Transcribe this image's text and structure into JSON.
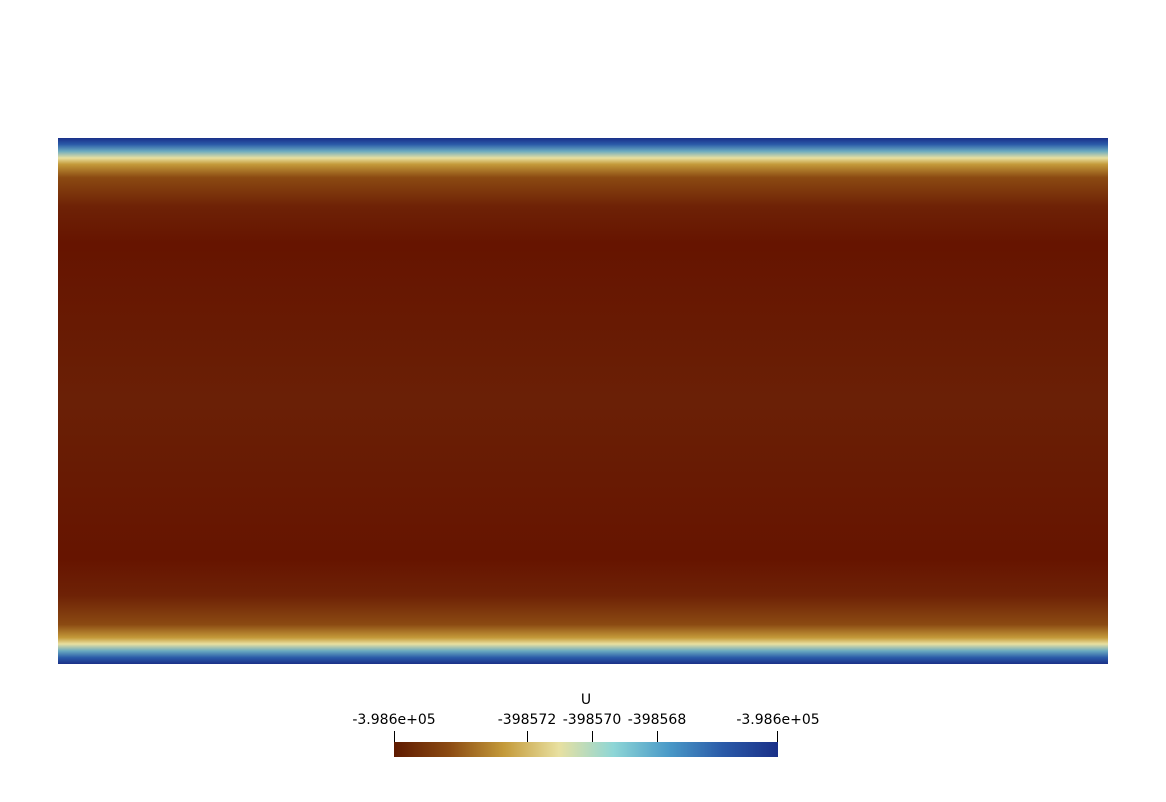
{
  "field": {
    "name": "U"
  },
  "legend": {
    "title": "U",
    "ticks": [
      {
        "label": "-3.986e+05"
      },
      {
        "label": "-398572"
      },
      {
        "label": "-398570"
      },
      {
        "label": "-398568"
      },
      {
        "label": "-3.986e+05"
      }
    ],
    "colors": [
      "#5e1a00",
      "#8b4a12",
      "#c49a3a",
      "#e8e0a0",
      "#8ed6d6",
      "#4a9ac8",
      "#2a5aa8",
      "#1a3088"
    ]
  }
}
